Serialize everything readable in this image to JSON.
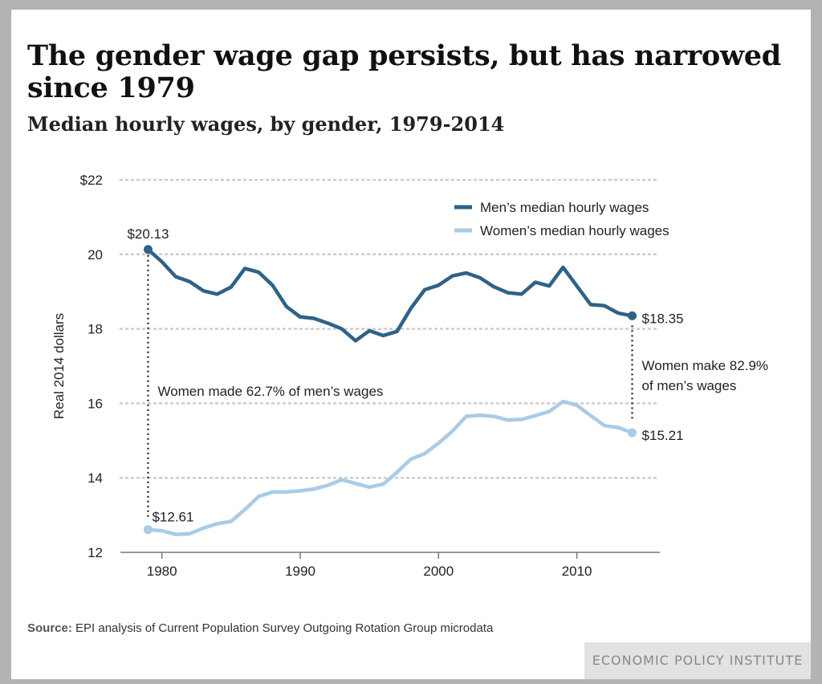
{
  "title": "The gender wage gap persists, but has narrowed since 1979",
  "subtitle": "Median hourly wages, by gender, 1979-2014",
  "source_label": "Source:",
  "source_text": "EPI analysis of Current Population Survey Outgoing Rotation Group microdata",
  "brand": "ECONOMIC POLICY INSTITUTE",
  "colors": {
    "men": "#2f6287",
    "women": "#a9cbe6",
    "grid": "#cccccc",
    "axis": "#777777"
  },
  "chart_data": {
    "type": "line",
    "title": "The gender wage gap persists, but has narrowed since 1979",
    "subtitle": "Median hourly wages, by gender, 1979-2014",
    "xlabel": "",
    "ylabel": "Real 2014 dollars",
    "xlim": [
      1977,
      2016
    ],
    "ylim": [
      12,
      22
    ],
    "x_ticks": [
      1980,
      1990,
      2000,
      2010
    ],
    "x_tick_labels": [
      "1980",
      "1990",
      "2000",
      "2010"
    ],
    "y_ticks": [
      12,
      14,
      16,
      18,
      20,
      22
    ],
    "y_tick_labels": [
      "12",
      "14",
      "16",
      "18",
      "20",
      "$22"
    ],
    "grid": "horizontal dotted",
    "legend_position": "top-right",
    "x": [
      1979,
      1980,
      1981,
      1982,
      1983,
      1984,
      1985,
      1986,
      1987,
      1988,
      1989,
      1990,
      1991,
      1992,
      1993,
      1994,
      1995,
      1996,
      1997,
      1998,
      1999,
      2000,
      2001,
      2002,
      2003,
      2004,
      2005,
      2006,
      2007,
      2008,
      2009,
      2010,
      2011,
      2012,
      2013,
      2014
    ],
    "series": [
      {
        "name": "Men’s median hourly wages",
        "values": [
          20.13,
          19.8,
          19.4,
          19.27,
          19.02,
          18.93,
          19.12,
          19.62,
          19.52,
          19.17,
          18.6,
          18.32,
          18.28,
          18.15,
          18.0,
          17.68,
          17.95,
          17.82,
          17.93,
          18.55,
          19.05,
          19.17,
          19.42,
          19.5,
          19.37,
          19.13,
          18.97,
          18.93,
          19.25,
          19.15,
          19.65,
          19.15,
          18.65,
          18.62,
          18.42,
          18.35
        ]
      },
      {
        "name": "Women’s median hourly wages",
        "values": [
          12.61,
          12.58,
          12.48,
          12.5,
          12.65,
          12.77,
          12.83,
          13.15,
          13.5,
          13.62,
          13.62,
          13.65,
          13.7,
          13.8,
          13.95,
          13.85,
          13.75,
          13.83,
          14.15,
          14.5,
          14.65,
          14.93,
          15.25,
          15.65,
          15.68,
          15.65,
          15.55,
          15.57,
          15.67,
          15.78,
          16.05,
          15.95,
          15.67,
          15.4,
          15.35,
          15.21
        ]
      }
    ],
    "annotations": {
      "men_start": "$20.13",
      "men_end": "$18.35",
      "women_start": "$12.61",
      "women_end": "$15.21",
      "gap_1979": "Women made 62.7% of men’s wages",
      "gap_2014_line1": "Women make 82.9%",
      "gap_2014_line2": "of men’s wages"
    }
  }
}
